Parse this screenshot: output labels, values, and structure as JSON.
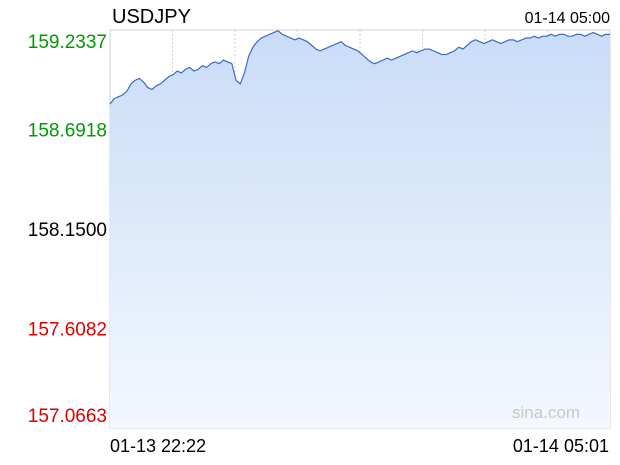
{
  "header": {
    "symbol": "USDJPY",
    "timestamp": "01-14 05:00"
  },
  "watermark": "sina.com",
  "colors": {
    "up": "#009900",
    "down": "#dd0000",
    "neutral": "#000000",
    "line": "#3b6bc4",
    "fill_top": "#c9dcf7",
    "fill_bottom": "#f3f8fe",
    "grid": "#d2d2d2",
    "baseline": "#8a8fb0",
    "watermark": "#c8c8c8"
  },
  "chart_data": {
    "type": "area",
    "title": "USDJPY",
    "reference_value": 158.15,
    "ylim": [
      157.0663,
      159.2337
    ],
    "y_ticks": [
      {
        "label": "159.2337",
        "value": 159.2337,
        "tone": "up"
      },
      {
        "label": "158.6918",
        "value": 158.6918,
        "tone": "up"
      },
      {
        "label": "158.1500",
        "value": 158.15,
        "tone": "neutral"
      },
      {
        "label": "157.6082",
        "value": 157.6082,
        "tone": "down"
      },
      {
        "label": "157.0663",
        "value": 157.0663,
        "tone": "down"
      }
    ],
    "x_tick_labels": [
      "01-13 22:22",
      "01-14 05:01"
    ],
    "grid": true,
    "series": [
      {
        "values": [
          158.83,
          158.86,
          158.87,
          158.88,
          158.9,
          158.94,
          158.96,
          158.97,
          158.95,
          158.92,
          158.91,
          158.93,
          158.94,
          158.96,
          158.98,
          158.99,
          159.01,
          159.0,
          159.02,
          159.03,
          159.01,
          159.02,
          159.04,
          159.03,
          159.05,
          159.06,
          159.05,
          159.07,
          159.06,
          159.05,
          158.96,
          158.94,
          159.0,
          159.09,
          159.14,
          159.17,
          159.19,
          159.2,
          159.21,
          159.22,
          159.23,
          159.21,
          159.2,
          159.19,
          159.18,
          159.19,
          159.18,
          159.17,
          159.15,
          159.13,
          159.12,
          159.13,
          159.14,
          159.15,
          159.16,
          159.17,
          159.15,
          159.14,
          159.13,
          159.12,
          159.1,
          159.08,
          159.06,
          159.05,
          159.06,
          159.07,
          159.08,
          159.07,
          159.08,
          159.09,
          159.1,
          159.11,
          159.12,
          159.11,
          159.12,
          159.13,
          159.13,
          159.12,
          159.11,
          159.1,
          159.1,
          159.11,
          159.12,
          159.14,
          159.13,
          159.15,
          159.17,
          159.18,
          159.17,
          159.16,
          159.17,
          159.18,
          159.17,
          159.16,
          159.17,
          159.18,
          159.18,
          159.17,
          159.18,
          159.19,
          159.19,
          159.2,
          159.19,
          159.2,
          159.2,
          159.21,
          159.2,
          159.21,
          159.21,
          159.2,
          159.2,
          159.21,
          159.21,
          159.2,
          159.21,
          159.22,
          159.21,
          159.2,
          159.21,
          159.21
        ]
      }
    ]
  }
}
